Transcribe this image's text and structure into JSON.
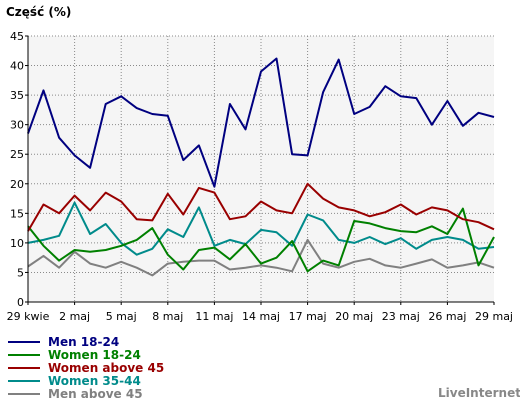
{
  "chart_data": {
    "type": "line",
    "ylabel": "Część (%)",
    "xlabel": "",
    "title": "",
    "ylim": [
      0,
      45
    ],
    "yticks": [
      0,
      5,
      10,
      15,
      20,
      25,
      30,
      35,
      40,
      45
    ],
    "xtick_labels": [
      "29 kwie",
      "2 maj",
      "5 maj",
      "8 maj",
      "11 maj",
      "14 maj",
      "17 maj",
      "20 maj",
      "23 maj",
      "26 maj",
      "29 maj"
    ],
    "x": [
      "29 kwie",
      "30 kwie",
      "1 maj",
      "2 maj",
      "3 maj",
      "4 maj",
      "5 maj",
      "6 maj",
      "7 maj",
      "8 maj",
      "9 maj",
      "10 maj",
      "11 maj",
      "12 maj",
      "13 maj",
      "14 maj",
      "15 maj",
      "16 maj",
      "17 maj",
      "18 maj",
      "19 maj",
      "20 maj",
      "21 maj",
      "22 maj",
      "23 maj",
      "24 maj",
      "25 maj",
      "26 maj",
      "27 maj",
      "28 maj",
      "29 maj"
    ],
    "grid": true,
    "legend_position": "bottom-left",
    "series": [
      {
        "name": "Men 18-24",
        "color": "#000080",
        "values": [
          28.5,
          35.8,
          27.8,
          24.8,
          22.7,
          33.5,
          34.8,
          32.8,
          31.8,
          31.5,
          24.0,
          26.5,
          19.5,
          33.5,
          29.2,
          39.0,
          41.2,
          25.0,
          24.8,
          35.5,
          41.0,
          31.8,
          33.0,
          36.5,
          34.8,
          34.5,
          30.0,
          34.0,
          29.8,
          32.0,
          31.3
        ]
      },
      {
        "name": "Women 18-24",
        "color": "#008000",
        "values": [
          12.8,
          9.5,
          7.0,
          8.8,
          8.5,
          8.8,
          9.5,
          10.5,
          12.5,
          8.0,
          5.5,
          8.8,
          9.2,
          7.2,
          9.8,
          6.5,
          7.5,
          10.3,
          5.2,
          7.0,
          6.2,
          13.7,
          13.3,
          12.5,
          12.0,
          11.8,
          12.8,
          11.5,
          15.8,
          6.2,
          11.0
        ]
      },
      {
        "name": "Women above 45",
        "color": "#990000",
        "values": [
          12.0,
          16.5,
          15.0,
          18.0,
          15.5,
          18.5,
          17.0,
          14.0,
          13.8,
          18.3,
          14.8,
          19.3,
          18.5,
          14.0,
          14.5,
          17.0,
          15.5,
          15.0,
          20.0,
          17.5,
          16.0,
          15.5,
          14.5,
          15.2,
          16.5,
          14.8,
          16.0,
          15.5,
          14.0,
          13.5,
          12.3
        ]
      },
      {
        "name": "Women 35-44",
        "color": "#008B8B",
        "values": [
          10.0,
          10.5,
          11.2,
          16.8,
          11.5,
          13.2,
          10.0,
          8.0,
          9.0,
          12.3,
          11.0,
          16.0,
          9.5,
          10.5,
          9.8,
          12.2,
          11.8,
          9.5,
          14.8,
          13.8,
          10.5,
          10.0,
          11.0,
          9.8,
          10.8,
          9.0,
          10.5,
          11.0,
          10.5,
          9.0,
          9.3
        ]
      },
      {
        "name": "Men above 45",
        "color": "#808080",
        "values": [
          6.0,
          7.8,
          5.8,
          8.5,
          6.5,
          5.8,
          6.8,
          5.8,
          4.5,
          6.5,
          6.8,
          7.0,
          7.0,
          5.5,
          5.8,
          6.2,
          5.8,
          5.2,
          10.5,
          6.5,
          5.8,
          6.8,
          7.3,
          6.2,
          5.8,
          6.5,
          7.2,
          5.8,
          6.2,
          6.7,
          5.8
        ]
      }
    ]
  },
  "source_label": "LiveInternet"
}
